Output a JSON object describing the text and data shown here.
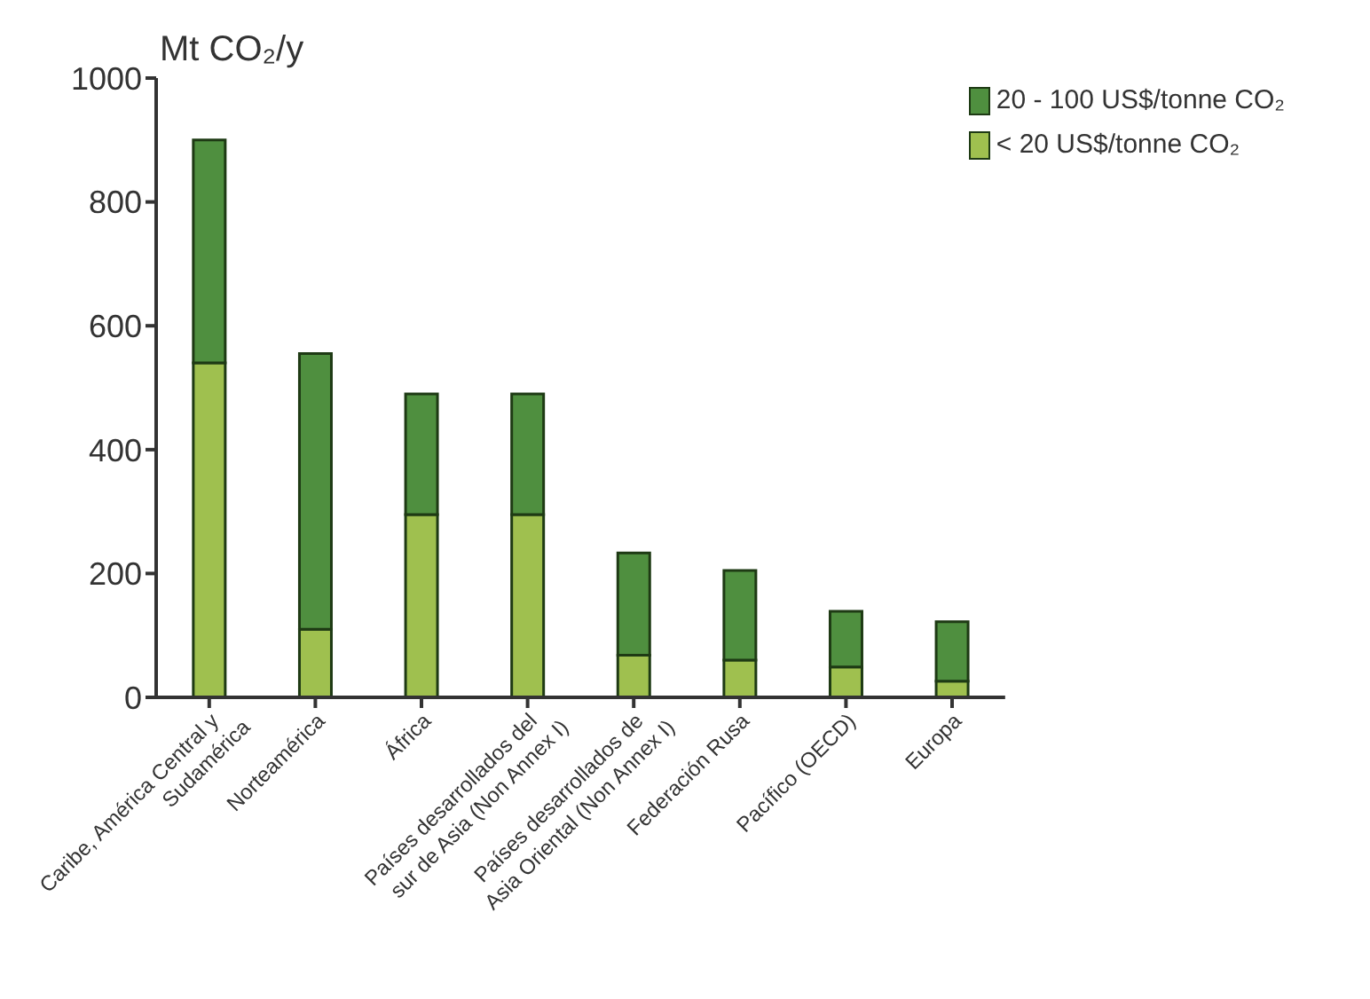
{
  "chart_data": {
    "type": "bar",
    "stacked": true,
    "ylabel": "Mt CO₂/y",
    "categories": [
      "Caribe, América Central y Sudamérica",
      "Norteamérica",
      "África",
      "Países desarrollados del sur de Asia (Non Annex I)",
      "Países desarrollados de Asia Oriental (Non Annex I)",
      "Federación Rusa",
      "Pacífico (OECD)",
      "Europa"
    ],
    "series": [
      {
        "name": "< 20 US$/tonne CO₂",
        "color": "#9fc04f",
        "values": [
          540,
          110,
          295,
          295,
          68,
          60,
          49,
          26
        ]
      },
      {
        "name": "20 - 100 US$/tonne CO₂",
        "color": "#4f8f3f",
        "values": [
          360,
          445,
          195,
          195,
          165,
          145,
          90,
          96
        ]
      }
    ],
    "ylim": [
      0,
      1000
    ],
    "yticks": [
      0,
      200,
      400,
      600,
      800,
      1000
    ],
    "grid": false,
    "legend": "top right"
  }
}
